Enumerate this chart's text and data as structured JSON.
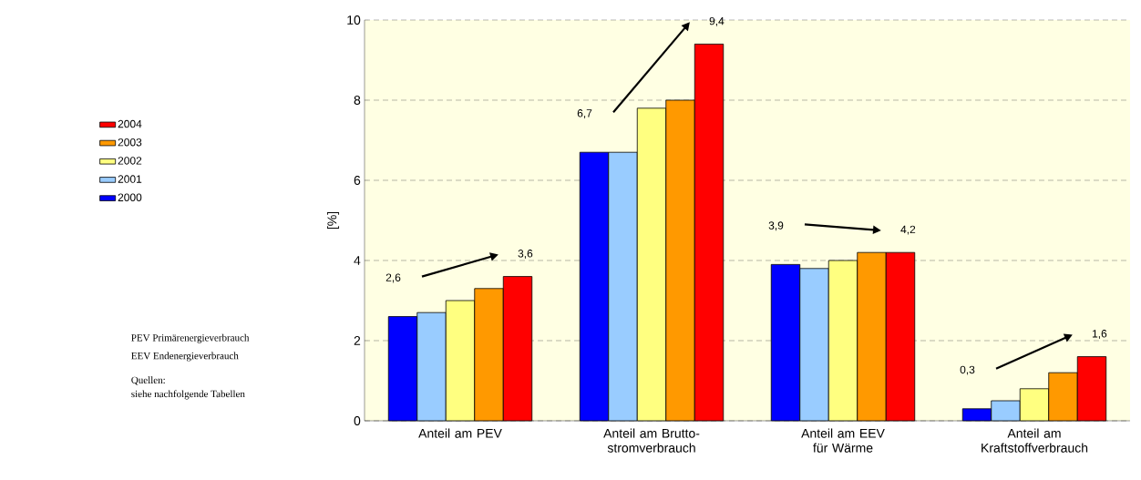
{
  "chart_data": {
    "type": "bar",
    "ylabel": "[%]",
    "categories": [
      "Anteil am PEV",
      "Anteil am Brutto-stromverbrauch",
      "Anteil am EEV für Wärme",
      "Anteil am Kraftstoffverbrauch"
    ],
    "series": [
      {
        "name": "2000",
        "color": "#0000ff",
        "values": [
          2.6,
          6.7,
          3.9,
          0.3
        ],
        "value_labels": [
          "2,6",
          "6,7",
          "3,9",
          "0,3"
        ]
      },
      {
        "name": "2001",
        "color": "#99ccff",
        "values": [
          2.7,
          6.7,
          3.8,
          0.5
        ]
      },
      {
        "name": "2002",
        "color": "#ffff80",
        "values": [
          3.0,
          7.8,
          4.0,
          0.8
        ]
      },
      {
        "name": "2003",
        "color": "#ff9900",
        "values": [
          3.3,
          8.0,
          4.2,
          1.2
        ]
      },
      {
        "name": "2004",
        "color": "#ff0000",
        "values": [
          3.6,
          9.4,
          4.2,
          1.6
        ],
        "value_labels": [
          "3,6",
          "9,4",
          "4,2",
          "1,6"
        ]
      }
    ],
    "ylim": [
      0,
      10
    ],
    "yticks": [
      0,
      2,
      4,
      6,
      8,
      10
    ],
    "grid": "y",
    "legend": "left",
    "annotations": [
      "PEV Primärenergieverbrauch",
      "EEV Endenergieverbrauch",
      "Quellen:",
      "siehe nachfolgende Tabellen"
    ]
  }
}
